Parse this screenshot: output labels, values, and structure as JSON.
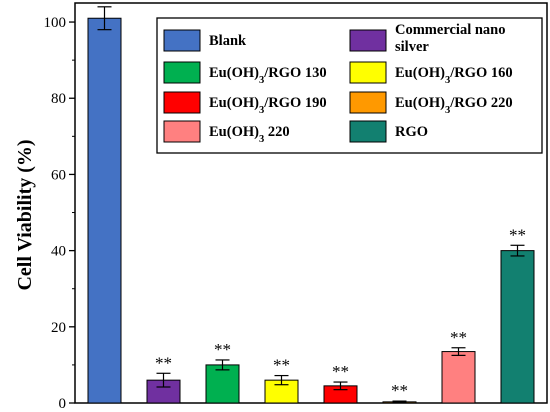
{
  "chart_data": {
    "type": "bar",
    "title": "",
    "xlabel": "",
    "ylabel": "Cell Viability (%)",
    "ylim": [
      0,
      105
    ],
    "yticks": [
      0,
      20,
      40,
      60,
      80,
      100
    ],
    "grid": false,
    "legend_position": "top-right",
    "categories": [
      "Blank",
      "Commercial nano silver",
      "Eu(OH)3/RGO 130",
      "Eu(OH)3/RGO 160",
      "Eu(OH)3/RGO 190",
      "Eu(OH)3/RGO 220",
      "Eu(OH)3 220",
      "RGO"
    ],
    "values": [
      101,
      6,
      10,
      6,
      4.5,
      0.3,
      13.5,
      40
    ],
    "errors": [
      3,
      1.8,
      1.3,
      1.2,
      1.0,
      0.2,
      1.0,
      1.4
    ],
    "colors": [
      "#4472C4",
      "#7030A0",
      "#00B050",
      "#FFFF00",
      "#FF0000",
      "#FF9900",
      "#FF8080",
      "#128070"
    ],
    "significance": [
      "",
      "**",
      "**",
      "**",
      "**",
      "**",
      "**",
      "**"
    ],
    "legend": [
      {
        "lines": [
          "Blank"
        ],
        "color": "#4472C4"
      },
      {
        "lines": [
          "Commercial nano",
          "silver"
        ],
        "color": "#7030A0"
      },
      {
        "lines": [
          "Eu(OH)3/RGO 130"
        ],
        "color": "#00B050"
      },
      {
        "lines": [
          "Eu(OH)3/RGO 160"
        ],
        "color": "#FFFF00"
      },
      {
        "lines": [
          "Eu(OH)3/RGO 190"
        ],
        "color": "#FF0000"
      },
      {
        "lines": [
          "Eu(OH)3/RGO 220"
        ],
        "color": "#FF9900"
      },
      {
        "lines": [
          "Eu(OH)3 220"
        ],
        "color": "#FF8080"
      },
      {
        "lines": [
          "RGO"
        ],
        "color": "#128070"
      }
    ]
  }
}
